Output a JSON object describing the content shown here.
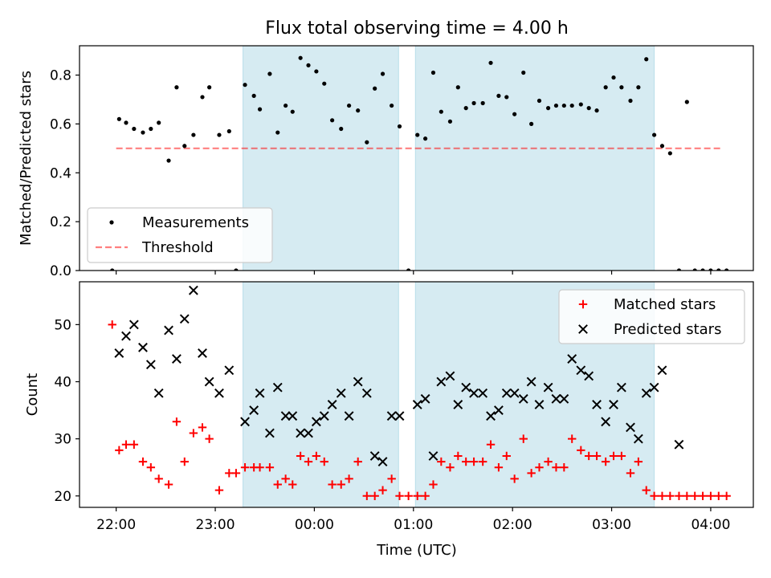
{
  "figure": {
    "title": "Flux total observing time = 4.00 h",
    "xlabel": "Time (UTC)"
  },
  "chart_data": [
    {
      "type": "scatter",
      "panel": "top",
      "ylabel": "Matched/Predicted stars",
      "ylim": [
        0,
        0.92
      ],
      "yticks": [
        0.0,
        0.2,
        0.4,
        0.6,
        0.8
      ],
      "ytick_labels": [
        "0.0",
        "0.2",
        "0.4",
        "0.6",
        "0.8"
      ],
      "xlim": [
        21.63,
        28.43
      ],
      "threshold": 0.5,
      "threshold_x": [
        22.0,
        28.1
      ],
      "shaded_intervals": [
        [
          23.28,
          24.85
        ],
        [
          25.02,
          27.43
        ]
      ],
      "legend": {
        "position": "lower-left",
        "entries": [
          "Measurements",
          "Threshold"
        ]
      },
      "series": [
        {
          "name": "Measurements",
          "color": "#000000",
          "marker": "dot",
          "points": [
            [
              21.96,
              0.0
            ],
            [
              22.03,
              0.62
            ],
            [
              22.1,
              0.605
            ],
            [
              22.18,
              0.58
            ],
            [
              22.27,
              0.565
            ],
            [
              22.35,
              0.58
            ],
            [
              22.43,
              0.605
            ],
            [
              22.53,
              0.45
            ],
            [
              22.61,
              0.75
            ],
            [
              22.69,
              0.51
            ],
            [
              22.78,
              0.555
            ],
            [
              22.87,
              0.71
            ],
            [
              22.94,
              0.75
            ],
            [
              23.04,
              0.555
            ],
            [
              23.14,
              0.57
            ],
            [
              23.21,
              0.0
            ],
            [
              23.3,
              0.76
            ],
            [
              23.39,
              0.715
            ],
            [
              23.45,
              0.66
            ],
            [
              23.55,
              0.805
            ],
            [
              23.63,
              0.565
            ],
            [
              23.71,
              0.675
            ],
            [
              23.78,
              0.65
            ],
            [
              23.86,
              0.87
            ],
            [
              23.94,
              0.84
            ],
            [
              24.02,
              0.815
            ],
            [
              24.1,
              0.765
            ],
            [
              24.18,
              0.615
            ],
            [
              24.27,
              0.58
            ],
            [
              24.35,
              0.675
            ],
            [
              24.44,
              0.655
            ],
            [
              24.53,
              0.525
            ],
            [
              24.61,
              0.745
            ],
            [
              24.69,
              0.805
            ],
            [
              24.78,
              0.675
            ],
            [
              24.86,
              0.59
            ],
            [
              24.95,
              0.0
            ],
            [
              25.04,
              0.555
            ],
            [
              25.12,
              0.54
            ],
            [
              25.2,
              0.81
            ],
            [
              25.28,
              0.65
            ],
            [
              25.37,
              0.61
            ],
            [
              25.45,
              0.75
            ],
            [
              25.53,
              0.665
            ],
            [
              25.61,
              0.685
            ],
            [
              25.7,
              0.685
            ],
            [
              25.78,
              0.85
            ],
            [
              25.86,
              0.715
            ],
            [
              25.94,
              0.71
            ],
            [
              26.02,
              0.64
            ],
            [
              26.11,
              0.81
            ],
            [
              26.19,
              0.6
            ],
            [
              26.27,
              0.695
            ],
            [
              26.36,
              0.665
            ],
            [
              26.44,
              0.675
            ],
            [
              26.52,
              0.675
            ],
            [
              26.6,
              0.675
            ],
            [
              26.69,
              0.68
            ],
            [
              26.77,
              0.665
            ],
            [
              26.85,
              0.655
            ],
            [
              26.94,
              0.75
            ],
            [
              27.02,
              0.79
            ],
            [
              27.1,
              0.75
            ],
            [
              27.19,
              0.695
            ],
            [
              27.27,
              0.75
            ],
            [
              27.35,
              0.865
            ],
            [
              27.43,
              0.555
            ],
            [
              27.51,
              0.51
            ],
            [
              27.59,
              0.48
            ],
            [
              27.68,
              0.0
            ],
            [
              27.76,
              0.69
            ],
            [
              27.84,
              0.0
            ],
            [
              27.92,
              0.0
            ],
            [
              28.0,
              0.0
            ],
            [
              28.08,
              0.0
            ],
            [
              28.16,
              0.0
            ]
          ]
        }
      ]
    },
    {
      "type": "scatter",
      "panel": "bottom",
      "ylabel": "Count",
      "ylim": [
        18.0,
        57.5
      ],
      "yticks": [
        20,
        30,
        40,
        50
      ],
      "ytick_labels": [
        "20",
        "30",
        "40",
        "50"
      ],
      "xlim": [
        21.63,
        28.43
      ],
      "xticks": [
        22,
        23,
        24,
        25,
        26,
        27,
        28
      ],
      "xtick_labels": [
        "22:00",
        "23:00",
        "00:00",
        "01:00",
        "02:00",
        "03:00",
        "04:00"
      ],
      "shaded_intervals": [
        [
          23.28,
          24.85
        ],
        [
          25.02,
          27.43
        ]
      ],
      "legend": {
        "position": "upper-right",
        "entries": [
          "Matched stars",
          "Predicted stars"
        ]
      },
      "series": [
        {
          "name": "Matched stars",
          "color": "#ff0000",
          "marker": "plus",
          "points": [
            [
              21.96,
              50
            ],
            [
              22.03,
              28
            ],
            [
              22.1,
              29
            ],
            [
              22.18,
              29
            ],
            [
              22.27,
              26
            ],
            [
              22.35,
              25
            ],
            [
              22.43,
              23
            ],
            [
              22.53,
              22
            ],
            [
              22.61,
              33
            ],
            [
              22.69,
              26
            ],
            [
              22.78,
              31
            ],
            [
              22.87,
              32
            ],
            [
              22.94,
              30
            ],
            [
              23.04,
              21
            ],
            [
              23.14,
              24
            ],
            [
              23.21,
              24
            ],
            [
              23.3,
              25
            ],
            [
              23.39,
              25
            ],
            [
              23.45,
              25
            ],
            [
              23.55,
              25
            ],
            [
              23.63,
              22
            ],
            [
              23.71,
              23
            ],
            [
              23.78,
              22
            ],
            [
              23.86,
              27
            ],
            [
              23.94,
              26
            ],
            [
              24.02,
              27
            ],
            [
              24.1,
              26
            ],
            [
              24.18,
              22
            ],
            [
              24.27,
              22
            ],
            [
              24.35,
              23
            ],
            [
              24.44,
              26
            ],
            [
              24.53,
              20
            ],
            [
              24.61,
              20
            ],
            [
              24.69,
              21
            ],
            [
              24.78,
              23
            ],
            [
              24.86,
              20
            ],
            [
              24.95,
              20
            ],
            [
              25.04,
              20
            ],
            [
              25.12,
              20
            ],
            [
              25.2,
              22
            ],
            [
              25.28,
              26
            ],
            [
              25.37,
              25
            ],
            [
              25.45,
              27
            ],
            [
              25.53,
              26
            ],
            [
              25.61,
              26
            ],
            [
              25.7,
              26
            ],
            [
              25.78,
              29
            ],
            [
              25.86,
              25
            ],
            [
              25.94,
              27
            ],
            [
              26.02,
              23
            ],
            [
              26.11,
              30
            ],
            [
              26.19,
              24
            ],
            [
              26.27,
              25
            ],
            [
              26.36,
              26
            ],
            [
              26.44,
              25
            ],
            [
              26.52,
              25
            ],
            [
              26.6,
              30
            ],
            [
              26.69,
              28
            ],
            [
              26.77,
              27
            ],
            [
              26.85,
              27
            ],
            [
              26.94,
              26
            ],
            [
              27.02,
              27
            ],
            [
              27.1,
              27
            ],
            [
              27.19,
              24
            ],
            [
              27.27,
              26
            ],
            [
              27.35,
              21
            ],
            [
              27.43,
              20
            ],
            [
              27.51,
              20
            ],
            [
              27.59,
              20
            ],
            [
              27.68,
              20
            ],
            [
              27.76,
              20
            ],
            [
              27.84,
              20
            ],
            [
              27.92,
              20
            ],
            [
              28.0,
              20
            ],
            [
              28.08,
              20
            ],
            [
              28.16,
              20
            ]
          ]
        },
        {
          "name": "Predicted stars",
          "color": "#000000",
          "marker": "cross",
          "points": [
            [
              22.03,
              45
            ],
            [
              22.1,
              48
            ],
            [
              22.18,
              50
            ],
            [
              22.27,
              46
            ],
            [
              22.35,
              43
            ],
            [
              22.43,
              38
            ],
            [
              22.53,
              49
            ],
            [
              22.61,
              44
            ],
            [
              22.69,
              51
            ],
            [
              22.78,
              56
            ],
            [
              22.87,
              45
            ],
            [
              22.94,
              40
            ],
            [
              23.04,
              38
            ],
            [
              23.14,
              42
            ],
            [
              23.3,
              33
            ],
            [
              23.39,
              35
            ],
            [
              23.45,
              38
            ],
            [
              23.55,
              31
            ],
            [
              23.63,
              39
            ],
            [
              23.71,
              34
            ],
            [
              23.78,
              34
            ],
            [
              23.86,
              31
            ],
            [
              23.94,
              31
            ],
            [
              24.02,
              33
            ],
            [
              24.1,
              34
            ],
            [
              24.18,
              36
            ],
            [
              24.27,
              38
            ],
            [
              24.35,
              34
            ],
            [
              24.44,
              40
            ],
            [
              24.53,
              38
            ],
            [
              24.61,
              27
            ],
            [
              24.69,
              26
            ],
            [
              24.78,
              34
            ],
            [
              24.86,
              34
            ],
            [
              25.04,
              36
            ],
            [
              25.12,
              37
            ],
            [
              25.2,
              27
            ],
            [
              25.28,
              40
            ],
            [
              25.37,
              41
            ],
            [
              25.45,
              36
            ],
            [
              25.53,
              39
            ],
            [
              25.61,
              38
            ],
            [
              25.7,
              38
            ],
            [
              25.78,
              34
            ],
            [
              25.86,
              35
            ],
            [
              25.94,
              38
            ],
            [
              26.02,
              38
            ],
            [
              26.11,
              37
            ],
            [
              26.19,
              40
            ],
            [
              26.27,
              36
            ],
            [
              26.36,
              39
            ],
            [
              26.44,
              37
            ],
            [
              26.52,
              37
            ],
            [
              26.6,
              44
            ],
            [
              26.69,
              42
            ],
            [
              26.77,
              41
            ],
            [
              26.85,
              36
            ],
            [
              26.94,
              33
            ],
            [
              27.02,
              36
            ],
            [
              27.1,
              39
            ],
            [
              27.19,
              32
            ],
            [
              27.27,
              30
            ],
            [
              27.35,
              38
            ],
            [
              27.43,
              39
            ],
            [
              27.51,
              42
            ],
            [
              27.68,
              29
            ]
          ]
        }
      ]
    }
  ]
}
